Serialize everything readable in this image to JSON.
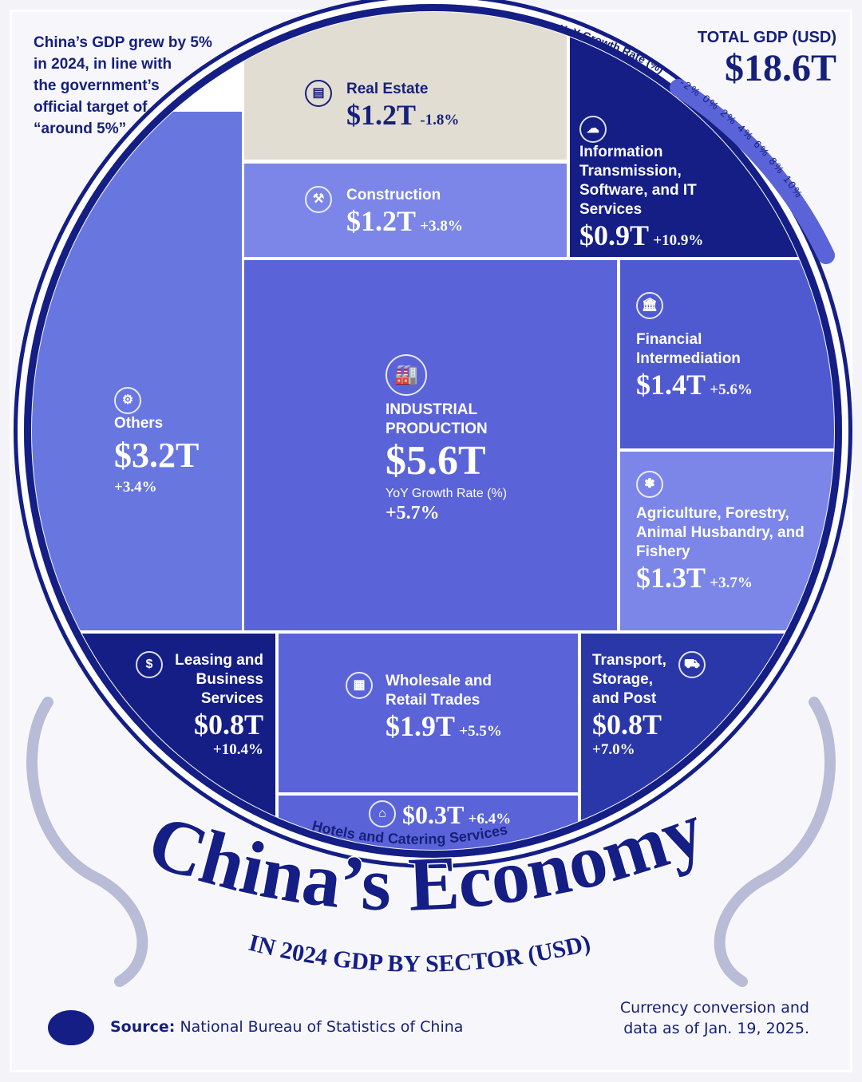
{
  "note": {
    "line1": "China’s GDP grew by 5%",
    "line2": "in 2024, in line with",
    "line3": "the government’s",
    "line4": "official target of",
    "line5": "“around 5%”"
  },
  "total": {
    "label": "TOTAL GDP (USD)",
    "value": "$18.6T"
  },
  "legend": {
    "title": "YoY Growth Rate (%)",
    "ticks": [
      "-2%",
      "0%",
      "2%",
      "4%",
      "6%",
      "8%",
      "10%"
    ]
  },
  "title": {
    "main": "China’s Economy",
    "sub": "IN 2024 GDP BY SECTOR (USD)"
  },
  "footer": {
    "source_label": "Source:",
    "source": "National Bureau of Statistics of China",
    "asof1": "Currency conversion and",
    "asof2": "data as of Jan. 19, 2025."
  },
  "colors": {
    "navy": "#141e85",
    "beige": "#e2ddd3",
    "mid": "#5a63d8",
    "light": "#7b86e8"
  },
  "chart_data": {
    "type": "treemap",
    "title": "China’s Economy",
    "subtitle": "IN 2024 GDP BY SECTOR (USD)",
    "size_unit": "USD trillions",
    "color_by": "YoY Growth Rate (%)",
    "sectors": [
      {
        "name": "Industrial Production",
        "label": "INDUSTRIAL PRODUCTION",
        "value": "$5.6T",
        "gdp": 5.6,
        "growth_label": "+5.7%",
        "growth": 5.7,
        "sublabel": "YoY Growth Rate (%)",
        "icon": "factory-icon"
      },
      {
        "name": "Others",
        "label": "Others",
        "value": "$3.2T",
        "gdp": 3.2,
        "growth_label": "+3.4%",
        "growth": 3.4,
        "icon": "gears-icon"
      },
      {
        "name": "Wholesale and Retail Trades",
        "label": "Wholesale and Retail Trades",
        "value": "$1.9T",
        "gdp": 1.9,
        "growth_label": "+5.5%",
        "growth": 5.5,
        "icon": "shop-icon"
      },
      {
        "name": "Financial Intermediation",
        "label": "Financial Intermediation",
        "value": "$1.4T",
        "gdp": 1.4,
        "growth_label": "+5.6%",
        "growth": 5.6,
        "icon": "bank-icon"
      },
      {
        "name": "Agriculture, Forestry, Animal Husbandry, and Fishery",
        "label": "Agriculture, Forestry, Animal Husbandry, and Fishery",
        "value": "$1.3T",
        "gdp": 1.3,
        "growth_label": "+3.7%",
        "growth": 3.7,
        "icon": "wheat-icon"
      },
      {
        "name": "Real Estate",
        "label": "Real Estate",
        "value": "$1.2T",
        "gdp": 1.2,
        "growth_label": "-1.8%",
        "growth": -1.8,
        "icon": "for-sale-sign-icon"
      },
      {
        "name": "Construction",
        "label": "Construction",
        "value": "$1.2T",
        "gdp": 1.2,
        "growth_label": "+3.8%",
        "growth": 3.8,
        "icon": "crane-icon"
      },
      {
        "name": "Information Transmission, Software, and IT Services",
        "label": "Information Transmission, Software, and IT Services",
        "value": "$0.9T",
        "gdp": 0.9,
        "growth_label": "+10.9%",
        "growth": 10.9,
        "icon": "cloud-network-icon"
      },
      {
        "name": "Leasing and Business Services",
        "label": "Leasing and Business Services",
        "value": "$0.8T",
        "gdp": 0.8,
        "growth_label": "+10.4%",
        "growth": 10.4,
        "icon": "coins-building-icon"
      },
      {
        "name": "Transport, Storage, and Post",
        "label": "Transport, Storage, and Post",
        "value": "$0.8T",
        "gdp": 0.8,
        "growth_label": "+7.0%",
        "growth": 7.0,
        "icon": "truck-icon"
      },
      {
        "name": "Hotels and Catering Services",
        "label": "Hotels and Catering Services",
        "value": "$0.3T",
        "gdp": 0.3,
        "growth_label": "+6.4%",
        "growth": 6.4,
        "icon": "dining-table-icon"
      }
    ]
  }
}
